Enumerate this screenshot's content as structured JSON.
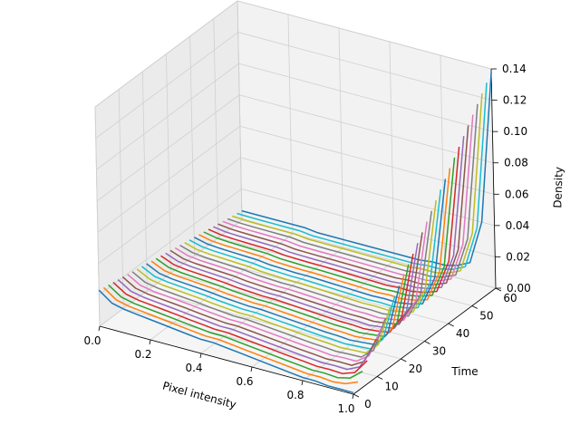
{
  "chart_data": {
    "type": "line",
    "projection": "3d",
    "xlabel": "Pixel intensity",
    "ylabel": "Time",
    "zlabel": "Density",
    "xlim": [
      0.0,
      1.0
    ],
    "ylim": [
      0,
      60
    ],
    "zlim": [
      0.0,
      0.14
    ],
    "x_ticks": [
      "0.0",
      "0.2",
      "0.4",
      "0.6",
      "0.8",
      "1.0"
    ],
    "y_ticks": [
      "0",
      "10",
      "20",
      "30",
      "40",
      "50",
      "60"
    ],
    "z_ticks": [
      "0.00",
      "0.02",
      "0.04",
      "0.06",
      "0.08",
      "0.10",
      "0.12",
      "0.14"
    ],
    "grid": true,
    "palette": [
      "#1f77b4",
      "#ff7f0e",
      "#2ca02c",
      "#d62728",
      "#9467bd",
      "#8c564b",
      "#e377c2",
      "#7f7f7f",
      "#bcbd22",
      "#17becf"
    ],
    "series_times": [
      0,
      2,
      4,
      6,
      8,
      10,
      12,
      14,
      16,
      18,
      20,
      22,
      24,
      26,
      28,
      30,
      32,
      34,
      36,
      38,
      40,
      42,
      44,
      46,
      48,
      50,
      52,
      54,
      56,
      58,
      60
    ],
    "curve_model": {
      "description": "density curve per time slice",
      "x": [
        0.0,
        0.05,
        0.1,
        0.15,
        0.2,
        0.25,
        0.3,
        0.35,
        0.4,
        0.45,
        0.5,
        0.55,
        0.6,
        0.65,
        0.7,
        0.75,
        0.8,
        0.85,
        0.9,
        0.95,
        1.0
      ],
      "first_series_z": [
        0.023,
        0.017,
        0.015,
        0.014,
        0.013,
        0.012,
        0.011,
        0.01,
        0.009,
        0.009,
        0.008,
        0.007,
        0.006,
        0.005,
        0.004,
        0.003,
        0.002,
        0.002,
        0.001,
        0.001,
        0.001
      ],
      "last_series_z": [
        0.006,
        0.006,
        0.006,
        0.006,
        0.006,
        0.006,
        0.005,
        0.005,
        0.005,
        0.005,
        0.005,
        0.005,
        0.005,
        0.005,
        0.005,
        0.006,
        0.006,
        0.008,
        0.012,
        0.04,
        0.138
      ]
    }
  }
}
